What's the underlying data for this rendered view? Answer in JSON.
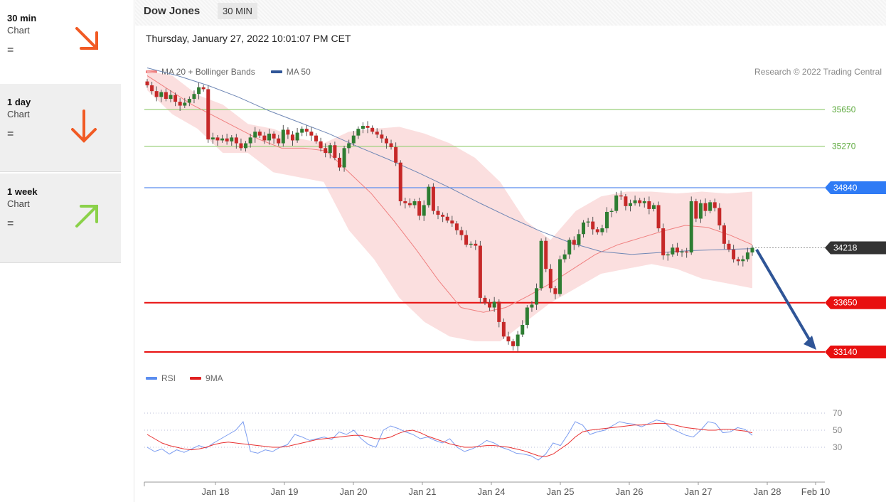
{
  "sidebar": {
    "items": [
      {
        "label": "30 min",
        "sub": "Chart",
        "status": "=",
        "direction": "down-right",
        "color": "#f15a24",
        "icon": "arrow-down-right-icon"
      },
      {
        "label": "1 day",
        "sub": "Chart",
        "status": "=",
        "direction": "down",
        "color": "#f15a24",
        "icon": "arrow-down-icon"
      },
      {
        "label": "1 week",
        "sub": "Chart",
        "status": "=",
        "direction": "up-right",
        "color": "#8bd14a",
        "icon": "arrow-up-right-icon"
      }
    ]
  },
  "header": {
    "title": "Dow Jones",
    "timeframe": "30 MIN",
    "datetime": "Thursday, January 27, 2022 10:01:07 PM CET",
    "credit": "Research © 2022 Trading Central"
  },
  "legend_main": [
    {
      "label": "MA 20 + Bollinger Bands",
      "color": "#f08080"
    },
    {
      "label": "MA 50",
      "color": "#2f5597"
    }
  ],
  "legend_rsi": [
    {
      "label": "RSI",
      "color": "#5b8def"
    },
    {
      "label": "9MA",
      "color": "#e02020"
    }
  ],
  "chart_data": {
    "type": "candlestick",
    "x_ticks": [
      "Jan 18",
      "Jan 19",
      "Jan 20",
      "Jan 21",
      "Jan 24",
      "Jan 25",
      "Jan 26",
      "Jan 27",
      "Jan 28",
      "Feb 10"
    ],
    "ylim": [
      33100,
      36200
    ],
    "levels": [
      {
        "value": 35650,
        "label": "35650",
        "kind": "resistance-green",
        "color": "#9bd07a",
        "text_color": "#5aa83a"
      },
      {
        "value": 35270,
        "label": "35270",
        "kind": "resistance-green",
        "color": "#9bd07a",
        "text_color": "#5aa83a"
      },
      {
        "value": 34840,
        "label": "34840",
        "kind": "pivot",
        "color": "#5b8def",
        "badge": "#2f7bf5"
      },
      {
        "value": 34218,
        "label": "34218",
        "kind": "last",
        "color": "#333333",
        "badge": "#333333"
      },
      {
        "value": 33650,
        "label": "33650",
        "kind": "support",
        "color": "#e81010",
        "badge": "#e81010"
      },
      {
        "value": 33140,
        "label": "33140",
        "kind": "support",
        "color": "#e81010",
        "badge": "#e81010"
      }
    ],
    "forecast_arrow": {
      "from": 34200,
      "to": 33140,
      "color": "#2f5597"
    },
    "closes": [
      35900,
      35840,
      35780,
      35830,
      35760,
      35800,
      35730,
      35690,
      35720,
      35760,
      35810,
      35880,
      35860,
      35340,
      35360,
      35330,
      35350,
      35320,
      35360,
      35300,
      35250,
      35300,
      35360,
      35420,
      35380,
      35330,
      35400,
      35350,
      35300,
      35440,
      35390,
      35330,
      35410,
      35450,
      35420,
      35380,
      35320,
      35250,
      35200,
      35280,
      35150,
      35050,
      35250,
      35300,
      35380,
      35450,
      35480,
      35460,
      35420,
      35390,
      35350,
      35300,
      35260,
      35100,
      34700,
      34680,
      34660,
      34700,
      34550,
      34660,
      34850,
      34600,
      34560,
      34540,
      34500,
      34470,
      34400,
      34350,
      34250,
      34260,
      34240,
      33700,
      33650,
      33600,
      33660,
      33450,
      33300,
      33250,
      33200,
      33320,
      33420,
      33600,
      33630,
      33800,
      34290,
      34000,
      33800,
      33740,
      34100,
      34150,
      34300,
      34250,
      34360,
      34480,
      34490,
      34410,
      34380,
      34420,
      34590,
      34600,
      34760,
      34750,
      34650,
      34680,
      34710,
      34680,
      34700,
      34620,
      34660,
      34420,
      34140,
      34150,
      34220,
      34170,
      34180,
      34170,
      34700,
      34520,
      34680,
      34600,
      34690,
      34630,
      34450,
      34260,
      34200,
      34100,
      34080,
      34100,
      34170,
      34218
    ],
    "ma50": [
      36080,
      36000,
      35900,
      35780,
      35640,
      35520,
      35400,
      35260,
      35130,
      34990,
      34840,
      34680,
      34530,
      34390,
      34270,
      34180,
      34150,
      34170,
      34190,
      34200,
      34210
    ],
    "ma20": [
      36000,
      35850,
      35700,
      35580,
      35460,
      35340,
      35250,
      35250,
      35220,
      35000,
      34780,
      34500,
      34200,
      33880,
      33600,
      33550,
      33600,
      33720,
      33850,
      34000,
      34150,
      34250,
      34320,
      34390,
      34450,
      34430,
      34350,
      34250
    ],
    "bb_upper": [
      36050,
      36000,
      35800,
      35700,
      35500,
      35450,
      35350,
      35300,
      35420,
      35450,
      35470,
      35400,
      35300,
      35150,
      34900,
      34500,
      34300,
      34600,
      34750,
      34800,
      34800,
      34780,
      34800,
      34780,
      34800
    ],
    "bb_lower": [
      35850,
      35600,
      35450,
      35200,
      35200,
      35000,
      34950,
      34900,
      34400,
      34100,
      33700,
      33450,
      33300,
      33250,
      33250,
      33450,
      33650,
      33800,
      33950,
      34000,
      34050,
      34000,
      33900,
      33850,
      33800
    ],
    "rsi": {
      "ylim": [
        0,
        100
      ],
      "levels": [
        70,
        50,
        30
      ],
      "rsi": [
        30,
        25,
        28,
        22,
        27,
        24,
        28,
        32,
        29,
        35,
        40,
        45,
        50,
        60,
        25,
        23,
        27,
        25,
        30,
        33,
        45,
        42,
        38,
        40,
        42,
        39,
        48,
        45,
        50,
        40,
        33,
        30,
        50,
        55,
        52,
        48,
        45,
        40,
        42,
        38,
        35,
        40,
        30,
        25,
        28,
        32,
        38,
        35,
        30,
        27,
        23,
        22,
        20,
        15,
        22,
        35,
        32,
        45,
        60,
        56,
        45,
        48,
        50,
        55,
        60,
        58,
        57,
        54,
        58,
        62,
        60,
        52,
        48,
        44,
        42,
        50,
        60,
        58,
        47,
        48,
        53,
        51,
        44
      ],
      "ma9": [
        45,
        40,
        35,
        32,
        30,
        28,
        27,
        28,
        30,
        33,
        35,
        36,
        35,
        34,
        33,
        32,
        31,
        30,
        30,
        31,
        33,
        35,
        37,
        39,
        40,
        41,
        42,
        43,
        44,
        44,
        42,
        40,
        40,
        42,
        46,
        49,
        50,
        47,
        43,
        40,
        37,
        34,
        32,
        30,
        30,
        31,
        32,
        32,
        31,
        30,
        28,
        26,
        23,
        20,
        19,
        22,
        28,
        34,
        42,
        48,
        50,
        51,
        52,
        53,
        54,
        55,
        56,
        56,
        57,
        58,
        58,
        57,
        55,
        53,
        52,
        51,
        50,
        50,
        51,
        51,
        50,
        49,
        47
      ]
    }
  }
}
